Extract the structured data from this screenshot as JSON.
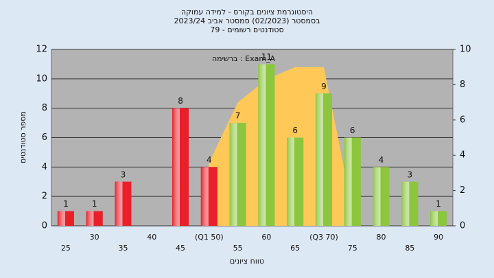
{
  "chart_data": {
    "type": "bar",
    "title": [
      "היסטוגרמת ציונים בקורס - למידה עמוקה",
      "בסמסטר  (02/2023)  סמסטר אביב 2023/24",
      "סטודנטים רשומים - 79"
    ],
    "annotation": "ברשימה : Exam_A",
    "x_label": "טווח ציונים",
    "y_label": "מספר סטודנטים",
    "categories": [
      "25",
      "30",
      "35",
      "40",
      "45",
      "(Q1 50)",
      "55",
      "60",
      "65",
      "(Q3 70)",
      "75",
      "80",
      "85",
      "90"
    ],
    "values": [
      1,
      1,
      3,
      0,
      8,
      4,
      7,
      11,
      6,
      9,
      6,
      4,
      3,
      1
    ],
    "colors": [
      "#e8202a",
      "#e8202a",
      "#e8202a",
      "#e8202a",
      "#e8202a",
      "#e8202a",
      "#8cc63f",
      "#8cc63f",
      "#8cc63f",
      "#8cc63f",
      "#8cc63f",
      "#8cc63f",
      "#8cc63f",
      "#8cc63f"
    ],
    "ylim": [
      0,
      12
    ],
    "yticks": [
      0,
      2,
      4,
      6,
      8,
      10,
      12
    ],
    "y2lim": [
      0,
      10
    ],
    "y2ticks": [
      0,
      2,
      4,
      6,
      8,
      10
    ],
    "area": {
      "axis": "y2",
      "color": "#ffc857",
      "x": [
        48.6,
        50,
        55,
        60,
        65,
        70,
        73.7
      ],
      "values": [
        0,
        3.6,
        7,
        8.3,
        9,
        9,
        3
      ]
    },
    "xlim": [
      22.5,
      92.5
    ],
    "grid": true
  }
}
